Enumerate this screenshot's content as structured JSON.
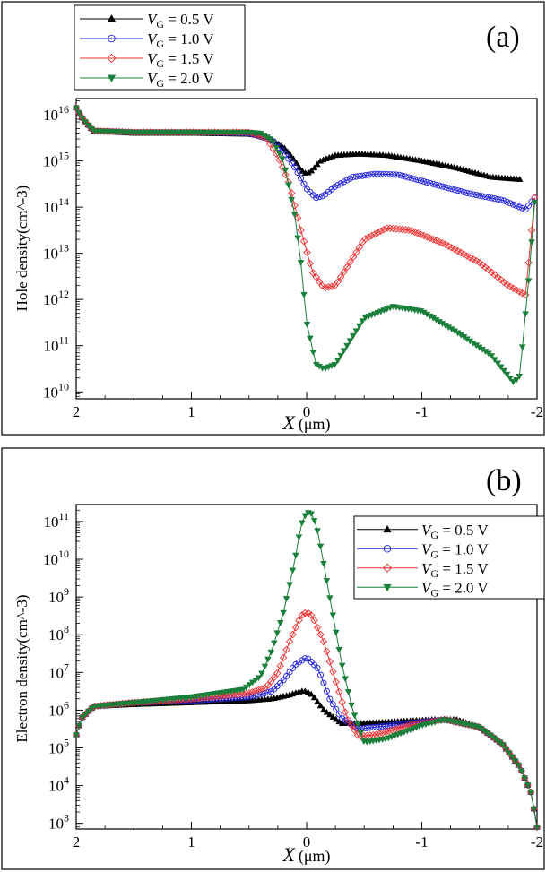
{
  "chart_data": [
    {
      "type": "line",
      "panel_label": "(a)",
      "title": "",
      "xlabel": "X",
      "xlabel_unit": "(μm)",
      "ylabel": "Hole density(cm^-3)",
      "xlim": [
        2,
        -2
      ],
      "ylim_log10": [
        9.85,
        16.35
      ],
      "xticks": [
        {
          "value": 2,
          "label": "2"
        },
        {
          "value": 1,
          "label": "1"
        },
        {
          "value": 0,
          "label": "0"
        },
        {
          "value": -1,
          "label": "-1"
        },
        {
          "value": -2,
          "label": "-2"
        }
      ],
      "yticks": [
        {
          "exp": 10,
          "base": "10",
          "sup": "10"
        },
        {
          "exp": 11,
          "base": "10",
          "sup": "11"
        },
        {
          "exp": 12,
          "base": "10",
          "sup": "12"
        },
        {
          "exp": 13,
          "base": "10",
          "sup": "13"
        },
        {
          "exp": 14,
          "base": "10",
          "sup": "14"
        },
        {
          "exp": 15,
          "base": "10",
          "sup": "15"
        },
        {
          "exp": 16,
          "base": "10",
          "sup": "16"
        }
      ],
      "legend_position": "top-left",
      "series": [
        {
          "name_var": "V",
          "name_sub": "G",
          "name_rest": " = 0.5 V",
          "color": "#000000",
          "marker": "triangle-up",
          "x": [
            2.0,
            1.94,
            1.85,
            1.5,
            1.0,
            0.5,
            0.35,
            0.2,
            0.1,
            0.05,
            0.0,
            -0.05,
            -0.12,
            -0.25,
            -0.45,
            -0.7,
            -1.0,
            -1.3,
            -1.6,
            -1.85
          ],
          "log10": [
            16.15,
            15.9,
            15.65,
            15.6,
            15.6,
            15.58,
            15.52,
            15.3,
            15.0,
            14.8,
            14.72,
            14.8,
            15.0,
            15.12,
            15.15,
            15.12,
            15.0,
            14.85,
            14.65,
            14.6
          ]
        },
        {
          "name_var": "V",
          "name_sub": "G",
          "name_rest": " = 1.0 V",
          "color": "#2222dd",
          "marker": "circle",
          "x": [
            2.0,
            1.94,
            1.85,
            1.5,
            1.0,
            0.5,
            0.3,
            0.2,
            0.1,
            0.0,
            -0.08,
            -0.15,
            -0.25,
            -0.4,
            -0.6,
            -0.8,
            -1.1,
            -1.4,
            -1.7,
            -1.9,
            -1.98
          ],
          "log10": [
            16.15,
            15.9,
            15.65,
            15.62,
            15.62,
            15.6,
            15.45,
            15.2,
            14.85,
            14.4,
            14.2,
            14.25,
            14.45,
            14.65,
            14.72,
            14.7,
            14.5,
            14.3,
            14.15,
            13.95,
            14.2
          ]
        },
        {
          "name_var": "V",
          "name_sub": "G",
          "name_rest": " = 1.5 V",
          "color": "#ee3333",
          "marker": "diamond",
          "x": [
            2.0,
            1.94,
            1.85,
            1.5,
            1.0,
            0.5,
            0.35,
            0.25,
            0.15,
            0.05,
            -0.05,
            -0.15,
            -0.25,
            -0.35,
            -0.5,
            -0.7,
            -0.9,
            -1.2,
            -1.5,
            -1.75,
            -1.9,
            -1.98
          ],
          "log10": [
            16.15,
            15.9,
            15.65,
            15.62,
            15.62,
            15.62,
            15.5,
            15.1,
            14.5,
            13.5,
            12.6,
            12.25,
            12.3,
            12.7,
            13.3,
            13.55,
            13.5,
            13.2,
            12.8,
            12.3,
            12.1,
            14.2
          ]
        },
        {
          "name_var": "V",
          "name_sub": "G",
          "name_rest": " = 2.0 V",
          "color": "#1a7f3a",
          "marker": "triangle-down",
          "x": [
            2.0,
            1.94,
            1.85,
            1.5,
            1.0,
            0.5,
            0.4,
            0.3,
            0.2,
            0.1,
            0.05,
            0.0,
            -0.08,
            -0.15,
            -0.25,
            -0.35,
            -0.5,
            -0.75,
            -1.0,
            -1.3,
            -1.6,
            -1.8,
            -1.85,
            -1.93,
            -1.98
          ],
          "log10": [
            16.15,
            15.9,
            15.65,
            15.62,
            15.62,
            15.62,
            15.6,
            15.45,
            15.0,
            13.8,
            12.8,
            11.5,
            10.6,
            10.5,
            10.6,
            11.0,
            11.6,
            11.85,
            11.75,
            11.3,
            10.8,
            10.2,
            10.35,
            12.5,
            14.1
          ]
        }
      ]
    },
    {
      "type": "line",
      "panel_label": "(b)",
      "title": "",
      "xlabel": "X",
      "xlabel_unit": "(μm)",
      "ylabel": "Electron density(cm^-3)",
      "xlim": [
        2,
        -2
      ],
      "ylim_log10": [
        2.85,
        11.45
      ],
      "xticks": [
        {
          "value": 2,
          "label": "2"
        },
        {
          "value": 1,
          "label": "1"
        },
        {
          "value": 0,
          "label": "0"
        },
        {
          "value": -1,
          "label": "-1"
        },
        {
          "value": -2,
          "label": "-2"
        }
      ],
      "yticks": [
        {
          "exp": 3,
          "base": "10",
          "sup": "3"
        },
        {
          "exp": 4,
          "base": "10",
          "sup": "4"
        },
        {
          "exp": 5,
          "base": "10",
          "sup": "5"
        },
        {
          "exp": 6,
          "base": "10",
          "sup": "6"
        },
        {
          "exp": 7,
          "base": "10",
          "sup": "7"
        },
        {
          "exp": 8,
          "base": "10",
          "sup": "8"
        },
        {
          "exp": 9,
          "base": "10",
          "sup": "9"
        },
        {
          "exp": 10,
          "base": "10",
          "sup": "10"
        },
        {
          "exp": 11,
          "base": "10",
          "sup": "11"
        }
      ],
      "legend_position": "top-right",
      "series": [
        {
          "name_var": "V",
          "name_sub": "G",
          "name_rest": " = 0.5 V",
          "color": "#000000",
          "marker": "triangle-up",
          "x": [
            2.0,
            1.95,
            1.85,
            1.5,
            1.0,
            0.5,
            0.3,
            0.15,
            0.05,
            0.0,
            -0.05,
            -0.15,
            -0.3,
            -0.5,
            -0.8,
            -1.1,
            -1.3,
            -1.5,
            -1.7,
            -1.85,
            -1.95,
            -2.0
          ],
          "log10": [
            5.35,
            5.8,
            6.1,
            6.15,
            6.2,
            6.25,
            6.3,
            6.4,
            6.5,
            6.5,
            6.4,
            6.0,
            5.65,
            5.65,
            5.7,
            5.75,
            5.75,
            5.55,
            5.1,
            4.5,
            3.8,
            2.9
          ]
        },
        {
          "name_var": "V",
          "name_sub": "G",
          "name_rest": " = 1.0 V",
          "color": "#2222dd",
          "marker": "circle",
          "x": [
            2.0,
            1.95,
            1.85,
            1.5,
            1.0,
            0.5,
            0.3,
            0.2,
            0.1,
            0.0,
            -0.1,
            -0.2,
            -0.3,
            -0.45,
            -0.6,
            -0.9,
            -1.2,
            -1.5,
            -1.7,
            -1.85,
            -1.95,
            -2.0
          ],
          "log10": [
            5.35,
            5.8,
            6.1,
            6.2,
            6.25,
            6.35,
            6.5,
            6.8,
            7.2,
            7.4,
            7.1,
            6.3,
            5.8,
            5.5,
            5.55,
            5.65,
            5.75,
            5.55,
            5.1,
            4.5,
            3.8,
            2.9
          ]
        },
        {
          "name_var": "V",
          "name_sub": "G",
          "name_rest": " = 1.5 V",
          "color": "#ee3333",
          "marker": "diamond",
          "x": [
            2.0,
            1.95,
            1.85,
            1.5,
            1.0,
            0.5,
            0.35,
            0.25,
            0.15,
            0.05,
            0.0,
            -0.05,
            -0.15,
            -0.25,
            -0.35,
            -0.45,
            -0.6,
            -0.9,
            -1.2,
            -1.5,
            -1.7,
            -1.85,
            -1.95,
            -2.0
          ],
          "log10": [
            5.35,
            5.8,
            6.1,
            6.2,
            6.3,
            6.45,
            6.6,
            7.0,
            7.8,
            8.5,
            8.6,
            8.5,
            7.8,
            6.8,
            5.8,
            5.3,
            5.35,
            5.6,
            5.75,
            5.55,
            5.1,
            4.5,
            3.8,
            2.9
          ]
        },
        {
          "name_var": "V",
          "name_sub": "G",
          "name_rest": " = 2.0 V",
          "color": "#1a7f3a",
          "marker": "triangle-down",
          "x": [
            2.0,
            1.95,
            1.85,
            1.5,
            1.0,
            0.55,
            0.4,
            0.3,
            0.2,
            0.1,
            0.05,
            0.0,
            -0.05,
            -0.1,
            -0.2,
            -0.3,
            -0.4,
            -0.5,
            -0.7,
            -1.0,
            -1.2,
            -1.5,
            -1.7,
            -1.85,
            -1.95,
            -2.0
          ],
          "log10": [
            5.35,
            5.8,
            6.1,
            6.2,
            6.35,
            6.55,
            6.9,
            7.6,
            8.6,
            10.0,
            10.9,
            11.25,
            11.2,
            10.7,
            9.0,
            7.3,
            6.0,
            5.15,
            5.25,
            5.6,
            5.75,
            5.55,
            5.1,
            4.5,
            3.8,
            2.9
          ]
        }
      ]
    }
  ]
}
